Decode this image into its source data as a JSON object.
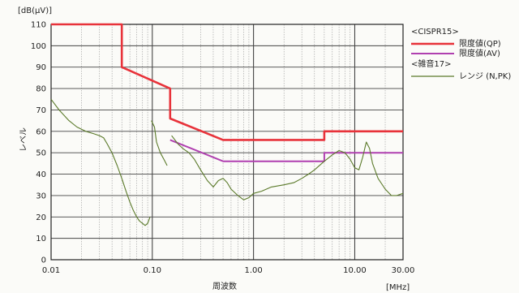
{
  "chart_data": {
    "type": "line",
    "x_scale": "log",
    "y_unit_label": "[dB(μV)]",
    "ylabel": "レベル",
    "xlabel": "周波数",
    "x_unit_label": "[MHz]",
    "xlim": [
      0.01,
      30
    ],
    "ylim": [
      0,
      110
    ],
    "grid": true,
    "legend_position": "right",
    "x_ticks": [
      {
        "value": 0.01,
        "label": "0.01"
      },
      {
        "value": 0.1,
        "label": "0.10"
      },
      {
        "value": 1,
        "label": "1.00"
      },
      {
        "value": 10,
        "label": "10.00"
      },
      {
        "value": 30,
        "label": "30.00"
      }
    ],
    "y_ticks": [
      0,
      10,
      20,
      30,
      40,
      50,
      60,
      70,
      80,
      90,
      100,
      110
    ],
    "legend": {
      "group1": "<CISPR15>",
      "qp_label": "限度値(QP)",
      "av_label": "限度値(AV)",
      "group2": "<雑音17>",
      "range_label": "レンジ (N,PK)"
    },
    "series": [
      {
        "name": "限度値(QP)",
        "color": "#e8323a",
        "points": [
          [
            0.01,
            110
          ],
          [
            0.05,
            110
          ],
          [
            0.05,
            90
          ],
          [
            0.15,
            80
          ],
          [
            0.15,
            66
          ],
          [
            0.5,
            56
          ],
          [
            5,
            56
          ],
          [
            5,
            60
          ],
          [
            30,
            60
          ]
        ]
      },
      {
        "name": "限度値(AV)",
        "color": "#b040b0",
        "points": [
          [
            0.15,
            56
          ],
          [
            0.5,
            46
          ],
          [
            5,
            46
          ],
          [
            5,
            50
          ],
          [
            30,
            50
          ]
        ]
      },
      {
        "name": "レンジ (N,PK)",
        "color": "#5b7a2a",
        "segments": [
          [
            [
              0.01,
              75
            ],
            [
              0.012,
              70
            ],
            [
              0.015,
              65
            ],
            [
              0.018,
              62
            ],
            [
              0.022,
              60
            ],
            [
              0.026,
              59
            ],
            [
              0.03,
              58
            ],
            [
              0.033,
              57
            ],
            [
              0.036,
              54
            ],
            [
              0.04,
              50
            ],
            [
              0.045,
              44
            ],
            [
              0.05,
              38
            ],
            [
              0.055,
              32
            ],
            [
              0.06,
              27
            ],
            [
              0.065,
              23
            ],
            [
              0.07,
              20
            ],
            [
              0.075,
              18
            ],
            [
              0.08,
              17
            ],
            [
              0.085,
              16
            ],
            [
              0.09,
              17
            ],
            [
              0.095,
              20
            ]
          ],
          [
            [
              0.098,
              65
            ],
            [
              0.105,
              62
            ],
            [
              0.11,
              55
            ],
            [
              0.12,
              50
            ],
            [
              0.13,
              47
            ],
            [
              0.14,
              44
            ]
          ],
          [
            [
              0.155,
              58
            ],
            [
              0.18,
              54
            ],
            [
              0.2,
              52
            ],
            [
              0.23,
              50
            ],
            [
              0.26,
              47
            ],
            [
              0.3,
              42
            ],
            [
              0.35,
              37
            ],
            [
              0.4,
              34
            ],
            [
              0.45,
              37
            ],
            [
              0.5,
              38
            ],
            [
              0.55,
              36
            ],
            [
              0.6,
              33
            ],
            [
              0.7,
              30
            ],
            [
              0.8,
              28
            ],
            [
              0.9,
              29
            ],
            [
              1.0,
              31
            ],
            [
              1.2,
              32
            ],
            [
              1.5,
              34
            ],
            [
              2.0,
              35
            ],
            [
              2.5,
              36
            ],
            [
              3.0,
              38
            ],
            [
              3.5,
              40
            ],
            [
              4.0,
              42
            ],
            [
              5.0,
              46
            ],
            [
              6.0,
              49
            ],
            [
              7.0,
              51
            ],
            [
              8.0,
              50
            ],
            [
              9.0,
              47
            ],
            [
              10.0,
              43
            ],
            [
              11.0,
              42
            ],
            [
              12.0,
              48
            ],
            [
              13.0,
              55
            ],
            [
              14.0,
              52
            ],
            [
              15.0,
              45
            ],
            [
              17.0,
              38
            ],
            [
              20.0,
              33
            ],
            [
              23.0,
              30
            ],
            [
              26.0,
              30
            ],
            [
              30.0,
              31
            ]
          ]
        ]
      }
    ]
  }
}
